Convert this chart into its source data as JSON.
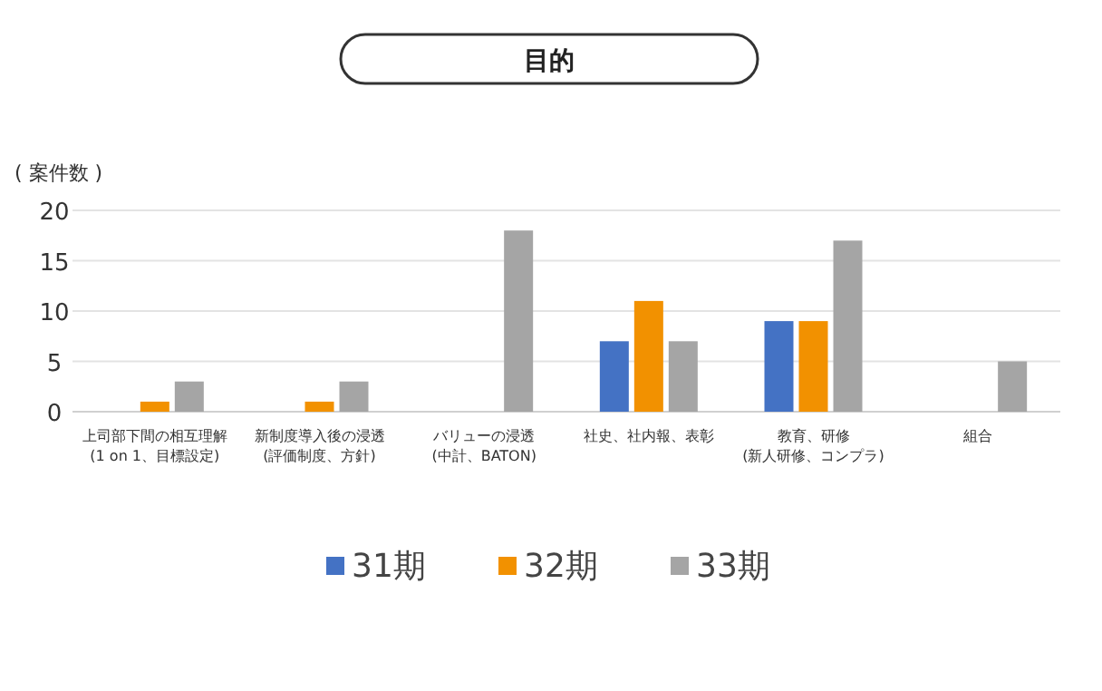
{
  "chart_data": {
    "type": "bar",
    "title": "目的",
    "ylabel": "( 案件数 )",
    "categories": [
      "上司部下間の相互理解\n(1 on 1、目標設定)",
      "新制度導入後の浸透\n(評価制度、方針)",
      "バリューの浸透\n(中計、BATON)",
      "社史、社内報、表彰",
      "教育、研修\n(新人研修、コンプラ)",
      "組合"
    ],
    "series": [
      {
        "name": "31期",
        "color": "#4472c4",
        "values": [
          null,
          null,
          null,
          7,
          9,
          null
        ]
      },
      {
        "name": "32期",
        "color": "#f29100",
        "values": [
          1,
          1,
          null,
          11,
          9,
          null
        ]
      },
      {
        "name": "33期",
        "color": "#a5a5a5",
        "values": [
          3,
          3,
          18,
          7,
          17,
          5
        ]
      }
    ],
    "ylim": [
      0,
      20
    ],
    "yticks": [
      0,
      5,
      10,
      15,
      20
    ],
    "grid": "y",
    "legend": "bottom"
  }
}
